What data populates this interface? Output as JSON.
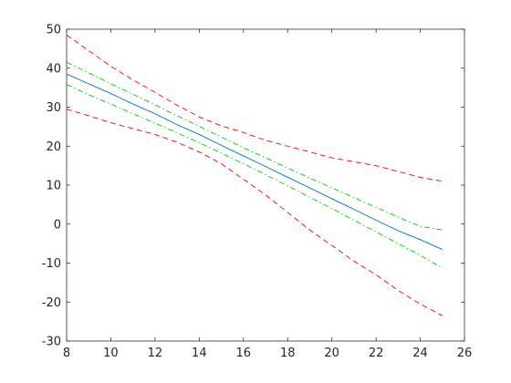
{
  "chart_data": {
    "type": "line",
    "title": "",
    "xlabel": "",
    "ylabel": "",
    "xlim": [
      8,
      26
    ],
    "ylim": [
      -30,
      50
    ],
    "xticks": [
      8,
      10,
      12,
      14,
      16,
      18,
      20,
      22,
      24,
      26
    ],
    "yticks": [
      -30,
      -20,
      -10,
      0,
      10,
      20,
      30,
      40,
      50
    ],
    "grid": false,
    "legend": "none",
    "series": [
      {
        "role": "fit",
        "color": "#0072bd",
        "style": "solid",
        "x": [
          8,
          9,
          10,
          11,
          12,
          13,
          14,
          15,
          16,
          17,
          18,
          19,
          20,
          21,
          22,
          23,
          24,
          25
        ],
        "y": [
          38.5,
          36.0,
          33.5,
          30.8,
          28.3,
          25.5,
          23.0,
          20.2,
          17.5,
          14.8,
          12.0,
          9.3,
          6.5,
          3.8,
          1.0,
          -1.7,
          -4.0,
          -6.5
        ]
      },
      {
        "role": "upper-inner-bound",
        "color": "#00cc00",
        "style": "dash-dot",
        "x": [
          8,
          9,
          10,
          11,
          12,
          13,
          14,
          15,
          16,
          17,
          18,
          19,
          20,
          21,
          22,
          23,
          24,
          25
        ],
        "y": [
          41.5,
          38.8,
          36.0,
          33.3,
          30.6,
          27.8,
          25.1,
          22.3,
          19.6,
          17.0,
          14.4,
          11.8,
          9.3,
          6.8,
          4.3,
          1.8,
          -0.6,
          -1.5
        ]
      },
      {
        "role": "lower-inner-bound",
        "color": "#00cc00",
        "style": "dash-dot",
        "x": [
          8,
          9,
          10,
          11,
          12,
          13,
          14,
          15,
          16,
          17,
          18,
          19,
          20,
          21,
          22,
          23,
          24,
          25
        ],
        "y": [
          35.8,
          33.2,
          30.8,
          28.3,
          25.9,
          23.4,
          20.9,
          18.2,
          15.5,
          12.7,
          9.8,
          6.9,
          4.0,
          1.0,
          -2.0,
          -5.0,
          -8.0,
          -11.3
        ]
      },
      {
        "role": "upper-outer-bound",
        "color": "#ff0000",
        "style": "dashed",
        "x": [
          8,
          9,
          10,
          11,
          12,
          13,
          14,
          15,
          16,
          17,
          18,
          19,
          20,
          21,
          22,
          23,
          24,
          25
        ],
        "y": [
          48.5,
          44.5,
          40.5,
          37.0,
          33.8,
          30.5,
          27.5,
          25.2,
          23.5,
          21.5,
          20.0,
          18.5,
          17.0,
          16.0,
          15.0,
          13.5,
          12.0,
          11.0
        ]
      },
      {
        "role": "lower-outer-bound",
        "color": "#ff0000",
        "style": "dashed",
        "x": [
          8,
          9,
          10,
          11,
          12,
          13,
          14,
          15,
          16,
          17,
          18,
          19,
          20,
          21,
          22,
          23,
          24,
          25
        ],
        "y": [
          29.5,
          27.8,
          26.0,
          24.5,
          23.0,
          21.0,
          18.5,
          15.5,
          11.5,
          7.5,
          3.0,
          -1.5,
          -5.5,
          -9.5,
          -13.0,
          -17.0,
          -20.5,
          -23.5
        ]
      }
    ]
  }
}
